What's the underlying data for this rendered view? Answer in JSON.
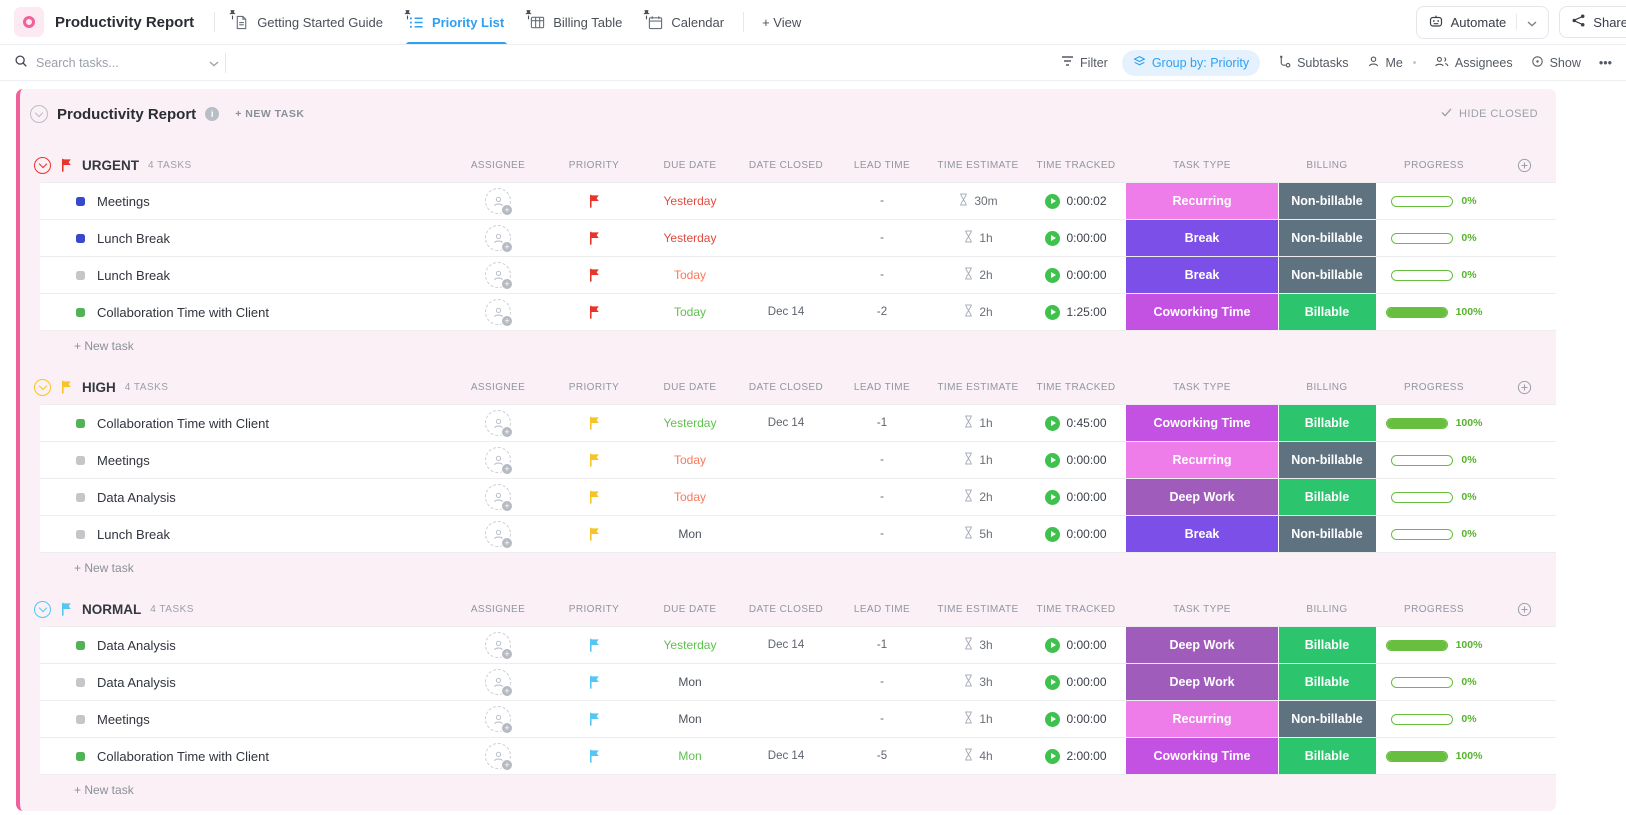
{
  "topbar": {
    "title": "Productivity Report",
    "tabs": [
      {
        "label": "Getting Started Guide",
        "icon": "doc-icon",
        "active": false
      },
      {
        "label": "Priority List",
        "icon": "list-icon",
        "active": true
      },
      {
        "label": "Billing Table",
        "icon": "table-icon",
        "active": false
      },
      {
        "label": "Calendar",
        "icon": "calendar-icon",
        "active": false
      }
    ],
    "add_view_label": "+ View",
    "automate_label": "Automate",
    "share_label": "Share"
  },
  "toolbar": {
    "search_placeholder": "Search tasks...",
    "filter_label": "Filter",
    "group_by_label": "Group by: Priority",
    "subtasks_label": "Subtasks",
    "me_label": "Me",
    "assignees_label": "Assignees",
    "show_label": "Show",
    "more_label": "•••"
  },
  "list": {
    "title": "Productivity Report",
    "new_task_label": "+ NEW TASK",
    "hide_closed_label": "HIDE CLOSED",
    "add_row_label": "+ New task",
    "columns": [
      "ASSIGNEE",
      "PRIORITY",
      "DUE DATE",
      "DATE CLOSED",
      "LEAD TIME",
      "TIME ESTIMATE",
      "TIME TRACKED",
      "TASK TYPE",
      "BILLING",
      "PROGRESS"
    ],
    "groups": [
      {
        "name": "URGENT",
        "count": "4 TASKS",
        "color": "#e8352b",
        "rows": [
          {
            "name": "Meetings",
            "status": "blue",
            "due": "Yesterday",
            "due_color": "#e14b40",
            "closed": "",
            "lead": "-",
            "estimate": "30m",
            "tracked": "0:00:02",
            "type": "Recurring",
            "billing": "Non-billable",
            "progress": 0,
            "progress_label": "0%"
          },
          {
            "name": "Lunch Break",
            "status": "blue",
            "due": "Yesterday",
            "due_color": "#e14b40",
            "closed": "",
            "lead": "-",
            "estimate": "1h",
            "tracked": "0:00:00",
            "type": "Break",
            "billing": "Non-billable",
            "progress": 0,
            "progress_label": "0%"
          },
          {
            "name": "Lunch Break",
            "status": "gray",
            "due": "Today",
            "due_color": "#f9795b",
            "closed": "",
            "lead": "-",
            "estimate": "2h",
            "tracked": "0:00:00",
            "type": "Break",
            "billing": "Non-billable",
            "progress": 0,
            "progress_label": "0%"
          },
          {
            "name": "Collaboration Time with Client",
            "status": "green",
            "due": "Today",
            "due_color": "#5ec14e",
            "closed": "Dec 14",
            "lead": "-2",
            "estimate": "2h",
            "tracked": "1:25:00",
            "type": "Coworking Time",
            "billing": "Billable",
            "progress": 100,
            "progress_label": "100%"
          }
        ]
      },
      {
        "name": "HIGH",
        "count": "4 TASKS",
        "color": "#f6c426",
        "rows": [
          {
            "name": "Collaboration Time with Client",
            "status": "green",
            "due": "Yesterday",
            "due_color": "#5ec14e",
            "closed": "Dec 14",
            "lead": "-1",
            "estimate": "1h",
            "tracked": "0:45:00",
            "type": "Coworking Time",
            "billing": "Billable",
            "progress": 100,
            "progress_label": "100%"
          },
          {
            "name": "Meetings",
            "status": "gray",
            "due": "Today",
            "due_color": "#f9795b",
            "closed": "",
            "lead": "-",
            "estimate": "1h",
            "tracked": "0:00:00",
            "type": "Recurring",
            "billing": "Non-billable",
            "progress": 0,
            "progress_label": "0%"
          },
          {
            "name": "Data Analysis",
            "status": "gray",
            "due": "Today",
            "due_color": "#f9795b",
            "closed": "",
            "lead": "-",
            "estimate": "2h",
            "tracked": "0:00:00",
            "type": "Deep Work",
            "billing": "Billable",
            "progress": 0,
            "progress_label": "0%"
          },
          {
            "name": "Lunch Break",
            "status": "gray",
            "due": "Mon",
            "due_color": "#4c535d",
            "closed": "",
            "lead": "-",
            "estimate": "5h",
            "tracked": "0:00:00",
            "type": "Break",
            "billing": "Non-billable",
            "progress": 0,
            "progress_label": "0%"
          }
        ]
      },
      {
        "name": "NORMAL",
        "count": "4 TASKS",
        "color": "#55c6f3",
        "rows": [
          {
            "name": "Data Analysis",
            "status": "green",
            "due": "Yesterday",
            "due_color": "#5ec14e",
            "closed": "Dec 14",
            "lead": "-1",
            "estimate": "3h",
            "tracked": "0:00:00",
            "type": "Deep Work",
            "billing": "Billable",
            "progress": 100,
            "progress_label": "100%"
          },
          {
            "name": "Data Analysis",
            "status": "gray",
            "due": "Mon",
            "due_color": "#4c535d",
            "closed": "",
            "lead": "-",
            "estimate": "3h",
            "tracked": "0:00:00",
            "type": "Deep Work",
            "billing": "Billable",
            "progress": 0,
            "progress_label": "0%"
          },
          {
            "name": "Meetings",
            "status": "gray",
            "due": "Mon",
            "due_color": "#4c535d",
            "closed": "",
            "lead": "-",
            "estimate": "1h",
            "tracked": "0:00:00",
            "type": "Recurring",
            "billing": "Non-billable",
            "progress": 0,
            "progress_label": "0%"
          },
          {
            "name": "Collaboration Time with Client",
            "status": "green",
            "due": "Mon",
            "due_color": "#5ec14e",
            "closed": "Dec 14",
            "lead": "-5",
            "estimate": "4h",
            "tracked": "2:00:00",
            "type": "Coworking Time",
            "billing": "Billable",
            "progress": 100,
            "progress_label": "100%"
          }
        ]
      }
    ]
  },
  "colors": {
    "accent": "#2f9ff2",
    "pink_border": "#f0619b",
    "pink_bg": "#fbf0f5",
    "progress_green": "#68bf3f",
    "tracked_play_green": "#3ec14d",
    "status": {
      "blue": "#3648cc",
      "gray": "#c4c6ca",
      "green": "#52b257"
    },
    "task_type": {
      "Recurring": "#ee7de9",
      "Break": "#7d4fe9",
      "Coworking Time": "#c352e2",
      "Deep Work": "#9f5cbb"
    },
    "billing": {
      "Billable": "#2cc56e",
      "Non-billable": "#5f7280"
    }
  }
}
